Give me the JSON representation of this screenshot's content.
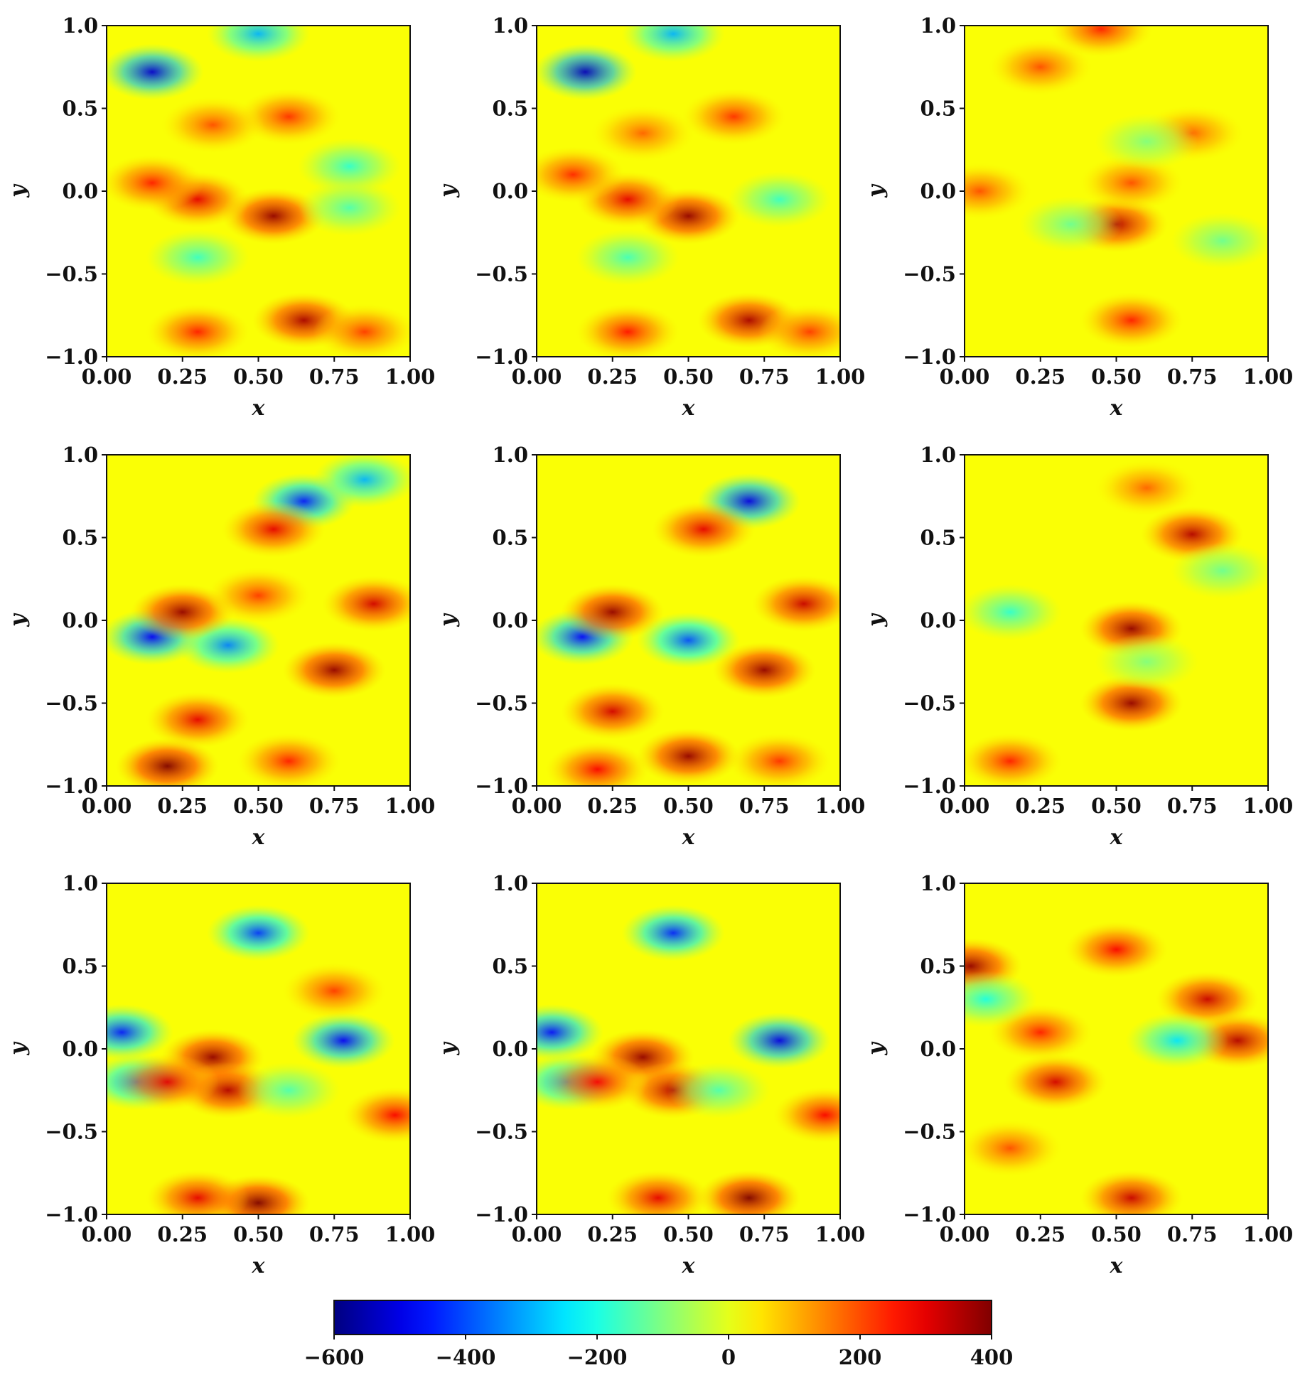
{
  "chart_data": {
    "type": "heatmap",
    "layout": "3x3 grid of vorticity-like fields sharing one colorbar",
    "colormap": "jet",
    "x_tick_labels": [
      "0.00",
      "0.25",
      "0.50",
      "0.75",
      "1.00"
    ],
    "y_tick_labels": [
      "1.0",
      "0.5",
      "0.0",
      "−0.5",
      "−1.0"
    ],
    "xlabel": "x",
    "ylabel": "y",
    "xlim": [
      0,
      1
    ],
    "ylim": [
      -1,
      1
    ],
    "colorbar": {
      "range": [
        -600,
        400
      ],
      "tick_labels": [
        "−600",
        "−400",
        "−200",
        "0",
        "200",
        "400"
      ],
      "tick_values": [
        -600,
        -400,
        -200,
        0,
        200,
        400
      ],
      "orientation": "horizontal",
      "placement": "bottom"
    },
    "panels": [
      {
        "row": 1,
        "col": 1,
        "blobs": [
          {
            "x": 0.15,
            "y": 0.72,
            "value": -520
          },
          {
            "x": 0.5,
            "y": 0.95,
            "value": -300
          },
          {
            "x": 0.6,
            "y": 0.45,
            "value": 230
          },
          {
            "x": 0.35,
            "y": 0.4,
            "value": 200
          },
          {
            "x": 0.55,
            "y": -0.15,
            "value": 380
          },
          {
            "x": 0.3,
            "y": -0.05,
            "value": 300
          },
          {
            "x": 0.15,
            "y": 0.05,
            "value": 250
          },
          {
            "x": 0.8,
            "y": 0.15,
            "value": -180
          },
          {
            "x": 0.8,
            "y": -0.1,
            "value": -150
          },
          {
            "x": 0.3,
            "y": -0.4,
            "value": -170
          },
          {
            "x": 0.65,
            "y": -0.78,
            "value": 360
          },
          {
            "x": 0.3,
            "y": -0.85,
            "value": 250
          },
          {
            "x": 0.85,
            "y": -0.85,
            "value": 220
          }
        ]
      },
      {
        "row": 1,
        "col": 2,
        "blobs": [
          {
            "x": 0.16,
            "y": 0.72,
            "value": -540
          },
          {
            "x": 0.45,
            "y": 0.95,
            "value": -300
          },
          {
            "x": 0.65,
            "y": 0.45,
            "value": 230
          },
          {
            "x": 0.35,
            "y": 0.35,
            "value": 180
          },
          {
            "x": 0.5,
            "y": -0.15,
            "value": 380
          },
          {
            "x": 0.3,
            "y": -0.05,
            "value": 300
          },
          {
            "x": 0.12,
            "y": 0.1,
            "value": 240
          },
          {
            "x": 0.8,
            "y": -0.05,
            "value": -170
          },
          {
            "x": 0.3,
            "y": -0.4,
            "value": -160
          },
          {
            "x": 0.7,
            "y": -0.78,
            "value": 360
          },
          {
            "x": 0.3,
            "y": -0.85,
            "value": 260
          },
          {
            "x": 0.9,
            "y": -0.85,
            "value": 220
          }
        ]
      },
      {
        "row": 1,
        "col": 3,
        "blobs": [
          {
            "x": 0.5,
            "y": -0.2,
            "value": 350
          },
          {
            "x": 0.55,
            "y": 0.05,
            "value": 200
          },
          {
            "x": 0.25,
            "y": 0.75,
            "value": 200
          },
          {
            "x": 0.45,
            "y": 0.98,
            "value": 250
          },
          {
            "x": 0.55,
            "y": -0.78,
            "value": 250
          },
          {
            "x": 0.05,
            "y": 0.0,
            "value": 200
          },
          {
            "x": 0.75,
            "y": 0.35,
            "value": 180
          },
          {
            "x": 0.35,
            "y": -0.2,
            "value": -120
          },
          {
            "x": 0.85,
            "y": -0.3,
            "value": -120
          },
          {
            "x": 0.6,
            "y": 0.3,
            "value": -100
          }
        ]
      },
      {
        "row": 2,
        "col": 1,
        "blobs": [
          {
            "x": 0.65,
            "y": 0.72,
            "value": -450
          },
          {
            "x": 0.85,
            "y": 0.85,
            "value": -300
          },
          {
            "x": 0.15,
            "y": -0.1,
            "value": -480
          },
          {
            "x": 0.4,
            "y": -0.15,
            "value": -350
          },
          {
            "x": 0.25,
            "y": 0.05,
            "value": 380
          },
          {
            "x": 0.55,
            "y": 0.55,
            "value": 300
          },
          {
            "x": 0.75,
            "y": -0.3,
            "value": 380
          },
          {
            "x": 0.88,
            "y": 0.1,
            "value": 320
          },
          {
            "x": 0.3,
            "y": -0.6,
            "value": 300
          },
          {
            "x": 0.2,
            "y": -0.88,
            "value": 400
          },
          {
            "x": 0.6,
            "y": -0.85,
            "value": 250
          },
          {
            "x": 0.5,
            "y": 0.15,
            "value": 220
          }
        ]
      },
      {
        "row": 2,
        "col": 2,
        "blobs": [
          {
            "x": 0.7,
            "y": 0.72,
            "value": -500
          },
          {
            "x": 0.15,
            "y": -0.1,
            "value": -470
          },
          {
            "x": 0.5,
            "y": -0.12,
            "value": -400
          },
          {
            "x": 0.25,
            "y": 0.05,
            "value": 380
          },
          {
            "x": 0.55,
            "y": 0.55,
            "value": 300
          },
          {
            "x": 0.75,
            "y": -0.3,
            "value": 380
          },
          {
            "x": 0.88,
            "y": 0.1,
            "value": 330
          },
          {
            "x": 0.25,
            "y": -0.55,
            "value": 320
          },
          {
            "x": 0.5,
            "y": -0.82,
            "value": 380
          },
          {
            "x": 0.2,
            "y": -0.9,
            "value": 280
          },
          {
            "x": 0.8,
            "y": -0.85,
            "value": 230
          }
        ]
      },
      {
        "row": 2,
        "col": 3,
        "blobs": [
          {
            "x": 0.55,
            "y": -0.05,
            "value": 380
          },
          {
            "x": 0.55,
            "y": -0.5,
            "value": 380
          },
          {
            "x": 0.75,
            "y": 0.52,
            "value": 350
          },
          {
            "x": 0.15,
            "y": -0.85,
            "value": 250
          },
          {
            "x": 0.6,
            "y": 0.8,
            "value": 180
          },
          {
            "x": 0.15,
            "y": 0.05,
            "value": -180
          },
          {
            "x": 0.85,
            "y": 0.3,
            "value": -120
          },
          {
            "x": 0.6,
            "y": -0.25,
            "value": -100
          }
        ]
      },
      {
        "row": 3,
        "col": 1,
        "blobs": [
          {
            "x": 0.5,
            "y": 0.7,
            "value": -420
          },
          {
            "x": 0.05,
            "y": 0.1,
            "value": -450
          },
          {
            "x": 0.1,
            "y": -0.2,
            "value": -350
          },
          {
            "x": 0.78,
            "y": 0.05,
            "value": -480
          },
          {
            "x": 0.35,
            "y": -0.05,
            "value": 380
          },
          {
            "x": 0.4,
            "y": -0.25,
            "value": 350
          },
          {
            "x": 0.2,
            "y": -0.2,
            "value": 300
          },
          {
            "x": 0.95,
            "y": -0.4,
            "value": 280
          },
          {
            "x": 0.75,
            "y": 0.35,
            "value": 220
          },
          {
            "x": 0.5,
            "y": -0.93,
            "value": 400
          },
          {
            "x": 0.3,
            "y": -0.9,
            "value": 300
          },
          {
            "x": 0.6,
            "y": -0.25,
            "value": -150
          }
        ]
      },
      {
        "row": 3,
        "col": 2,
        "blobs": [
          {
            "x": 0.45,
            "y": 0.7,
            "value": -440
          },
          {
            "x": 0.05,
            "y": 0.1,
            "value": -460
          },
          {
            "x": 0.1,
            "y": -0.2,
            "value": -330
          },
          {
            "x": 0.8,
            "y": 0.05,
            "value": -500
          },
          {
            "x": 0.35,
            "y": -0.05,
            "value": 380
          },
          {
            "x": 0.45,
            "y": -0.25,
            "value": 350
          },
          {
            "x": 0.2,
            "y": -0.2,
            "value": 280
          },
          {
            "x": 0.95,
            "y": -0.4,
            "value": 280
          },
          {
            "x": 0.7,
            "y": -0.9,
            "value": 400
          },
          {
            "x": 0.4,
            "y": -0.9,
            "value": 300
          },
          {
            "x": 0.6,
            "y": -0.25,
            "value": -150
          }
        ]
      },
      {
        "row": 3,
        "col": 3,
        "blobs": [
          {
            "x": 0.5,
            "y": 0.6,
            "value": 280
          },
          {
            "x": 0.02,
            "y": 0.5,
            "value": 380
          },
          {
            "x": 0.8,
            "y": 0.3,
            "value": 330
          },
          {
            "x": 0.9,
            "y": 0.05,
            "value": 350
          },
          {
            "x": 0.3,
            "y": -0.2,
            "value": 320
          },
          {
            "x": 0.25,
            "y": 0.1,
            "value": 250
          },
          {
            "x": 0.55,
            "y": -0.9,
            "value": 330
          },
          {
            "x": 0.7,
            "y": 0.05,
            "value": -250
          },
          {
            "x": 0.07,
            "y": 0.3,
            "value": -200
          },
          {
            "x": 0.15,
            "y": -0.6,
            "value": 200
          }
        ]
      }
    ]
  }
}
